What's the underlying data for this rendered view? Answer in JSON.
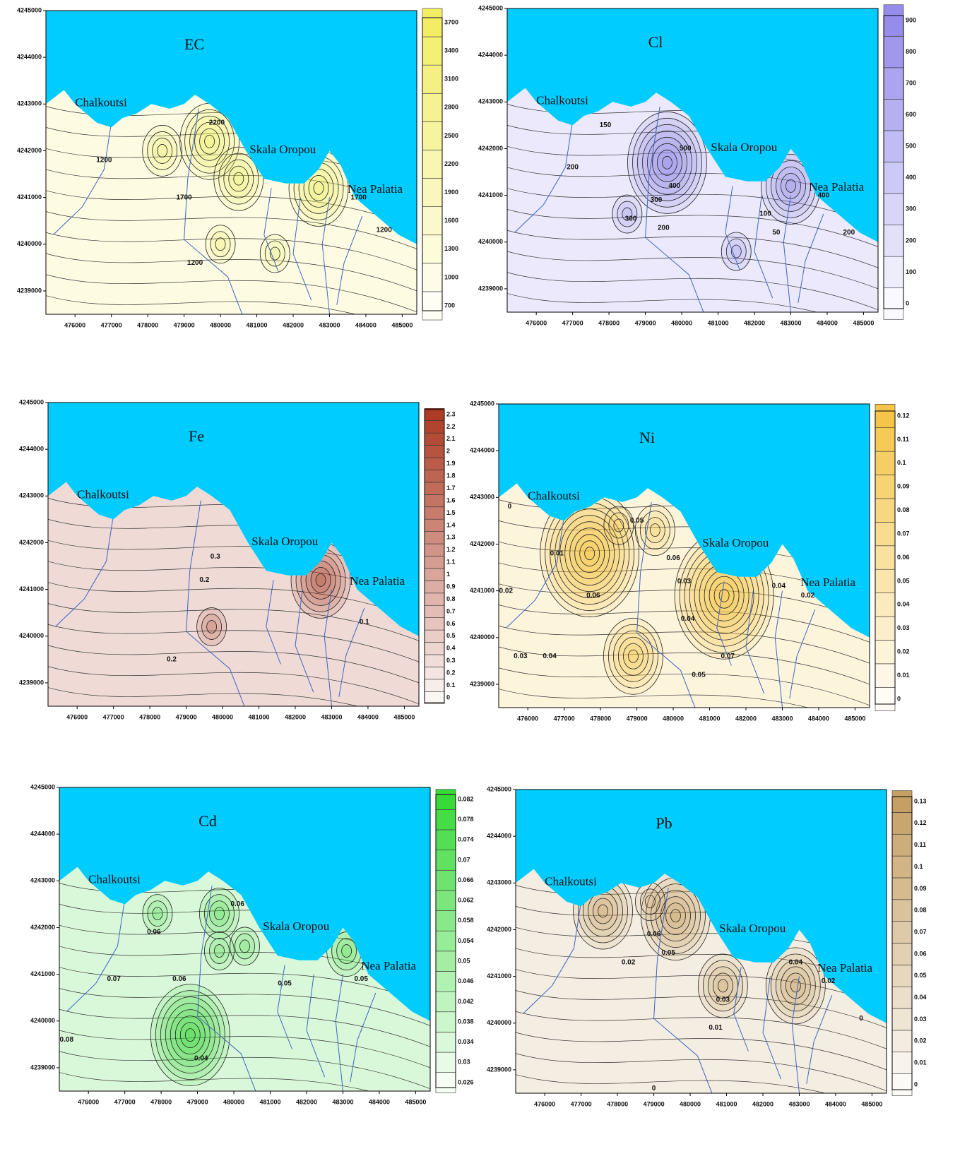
{
  "x_axis_ticks": [
    476000,
    477000,
    478000,
    479000,
    480000,
    481000,
    482000,
    483000,
    484000,
    485000
  ],
  "y_axis_ticks": [
    4239000,
    4240000,
    4241000,
    4242000,
    4243000,
    4244000,
    4245000
  ],
  "panels": [
    {
      "title": "EC",
      "color": "#f2ec5e",
      "places": [
        "Chalkoutsi",
        "Skala Oropou",
        "Nea Palatia"
      ],
      "colorbar_ticks": [
        700,
        1000,
        1300,
        1600,
        1900,
        2200,
        2500,
        2800,
        3100,
        3400,
        3700
      ],
      "contour_labels": [
        1200,
        1700,
        2200,
        1200,
        1200,
        1700
      ]
    },
    {
      "title": "Cl",
      "color": "#8f86ea",
      "places": [
        "Chalkoutsi",
        "Skala Oropou",
        "Nea Palatia"
      ],
      "colorbar_ticks": [
        0,
        100,
        200,
        300,
        400,
        500,
        600,
        700,
        800,
        900
      ],
      "contour_labels": [
        150,
        200,
        300,
        500,
        400,
        300,
        200,
        100,
        50,
        400,
        200
      ]
    },
    {
      "title": "Fe",
      "color": "#a8321a",
      "places": [
        "Chalkoutsi",
        "Skala Oropou",
        "Nea Palatia"
      ],
      "colorbar_ticks": [
        0,
        0.1,
        0.2,
        0.3,
        0.4,
        0.5,
        0.6,
        0.7,
        0.8,
        0.9,
        1,
        1.1,
        1.2,
        1.3,
        1.4,
        1.5,
        1.6,
        1.7,
        1.8,
        1.9,
        2,
        2.1,
        2.2,
        2.3
      ],
      "contour_labels": [
        0.3,
        0.2,
        0.1,
        0.2
      ]
    },
    {
      "title": "Ni",
      "color": "#f3c23e",
      "places": [
        "Chalkoutsi",
        "Skala Oropou",
        "Nea Palatia"
      ],
      "colorbar_ticks": [
        0,
        0.01,
        0.02,
        0.03,
        0.04,
        0.05,
        0.06,
        0.07,
        0.08,
        0.09,
        0.1,
        0.11,
        0.12
      ],
      "contour_labels": [
        0,
        0.01,
        0.02,
        0.03,
        0.04,
        0.06,
        0.05,
        0.06,
        0.04,
        0.03,
        0.07,
        0.05,
        0.04,
        0.02
      ]
    },
    {
      "title": "Cd",
      "color": "#2ed82e",
      "places": [
        "Chalkoutsi",
        "Skala Oropou",
        "Nea Palatia"
      ],
      "colorbar_ticks": [
        0.026,
        0.03,
        0.034,
        0.038,
        0.042,
        0.046,
        0.05,
        0.054,
        0.058,
        0.062,
        0.066,
        0.07,
        0.074,
        0.078,
        0.082
      ],
      "contour_labels": [
        0.06,
        0.07,
        0.06,
        0.05,
        0.05,
        0.08,
        0.04,
        0.06
      ]
    },
    {
      "title": "Pb",
      "color": "#c29a5c",
      "places": [
        "Chalkoutsi",
        "Skala Oropou",
        "Nea Palatia"
      ],
      "colorbar_ticks": [
        0,
        0.01,
        0.02,
        0.03,
        0.04,
        0.05,
        0.06,
        0.07,
        0.08,
        0.09,
        0.1,
        0.11,
        0.12,
        0.13
      ],
      "contour_labels": [
        0.02,
        0.05,
        0.03,
        0.01,
        0,
        0.04,
        0.02,
        0,
        0.06
      ]
    }
  ]
}
